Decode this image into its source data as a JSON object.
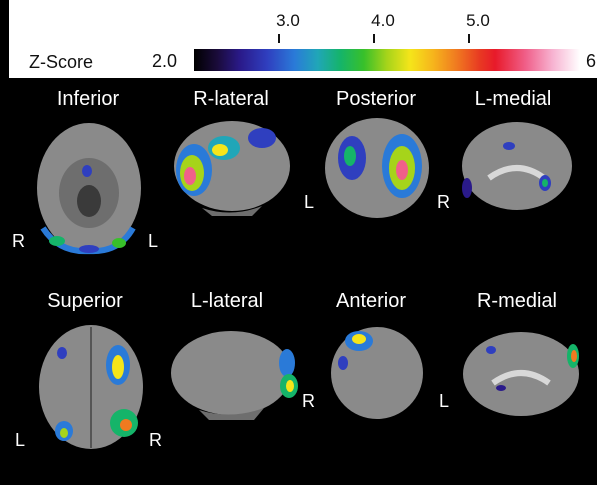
{
  "colorbar": {
    "title": "Z-Score",
    "min_label": "2.0",
    "max_label": "6",
    "ticks": [
      "3.0",
      "4.0",
      "5.0"
    ],
    "colors": [
      "#000000",
      "#2a1a8a",
      "#2a7ad8",
      "#15b469",
      "#a6d41a",
      "#f5e51a",
      "#f07a20",
      "#e81a2a",
      "#f7b4d2",
      "#ffffff"
    ]
  },
  "views": [
    {
      "label": "Inferior",
      "sides": [
        "R",
        "L"
      ]
    },
    {
      "label": "R-lateral",
      "sides": []
    },
    {
      "label": "Posterior",
      "sides": [
        "L",
        "R"
      ]
    },
    {
      "label": "L-medial",
      "sides": []
    },
    {
      "label": "Superior",
      "sides": [
        "L",
        "R"
      ]
    },
    {
      "label": "L-lateral",
      "sides": []
    },
    {
      "label": "Anterior",
      "sides": [
        "R",
        "L"
      ]
    },
    {
      "label": "R-medial",
      "sides": []
    }
  ]
}
